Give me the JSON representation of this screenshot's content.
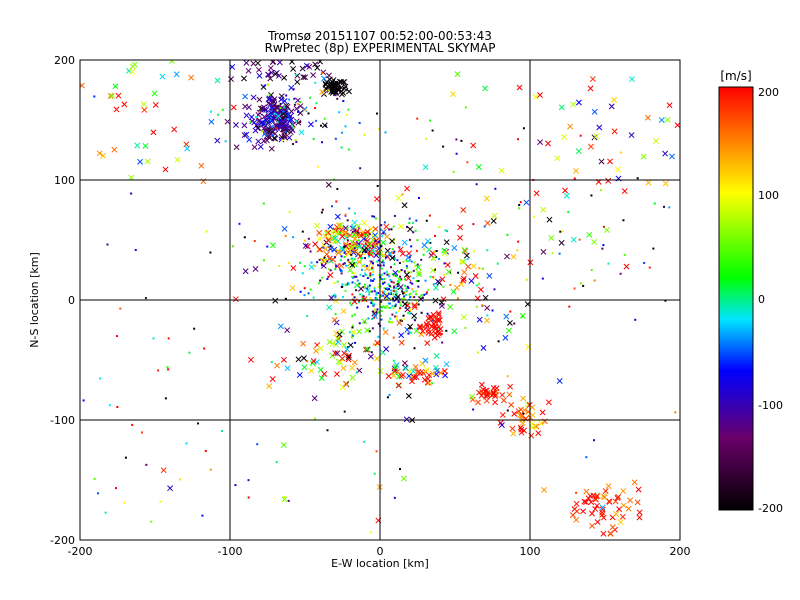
{
  "chart_data": {
    "type": "scatter",
    "title": "Tromsø 20151107 00:52:00-00:53:43",
    "subtitle": "RwPretec (8p) EXPERIMENTAL SKYMAP",
    "xlabel": "E-W location [km]",
    "ylabel": "N-S location [km]",
    "xlim": [
      -200,
      200
    ],
    "ylim": [
      -200,
      200
    ],
    "xticks": [
      "-200",
      "-100",
      "0",
      "100",
      "200"
    ],
    "yticks": [
      "-200",
      "-100",
      "0",
      "100",
      "200"
    ],
    "grid": true,
    "colorbar": {
      "label": "[m/s]",
      "range": [
        -200,
        200
      ],
      "ticks": [
        "200",
        "100",
        "0",
        "-100",
        "-200"
      ],
      "colors": [
        "#000000",
        "#6a006a",
        "#0000ff",
        "#00e5ff",
        "#00ff00",
        "#ffff00",
        "#ff0000"
      ]
    },
    "marker_types": [
      "x",
      "dot"
    ],
    "clusters": [
      {
        "x": -70,
        "y": 150,
        "sx": 9,
        "sy": 10,
        "n": 180,
        "v": -110,
        "vs": 40,
        "m": "x"
      },
      {
        "x": -30,
        "y": 178,
        "sx": 4,
        "sy": 3,
        "n": 50,
        "v": -200,
        "vs": 5,
        "m": "x"
      },
      {
        "x": -65,
        "y": 190,
        "sx": 20,
        "sy": 6,
        "n": 40,
        "v": -140,
        "vs": 60,
        "m": "x"
      },
      {
        "x": -50,
        "y": 150,
        "sx": 25,
        "sy": 15,
        "n": 70,
        "v": -40,
        "vs": 110,
        "m": "dot"
      },
      {
        "x": -20,
        "y": 48,
        "sx": 14,
        "sy": 8,
        "n": 140,
        "v": 90,
        "vs": 120,
        "m": "x"
      },
      {
        "x": -10,
        "y": 35,
        "sx": 18,
        "sy": 20,
        "n": 120,
        "v": -60,
        "vs": 60,
        "m": "dot"
      },
      {
        "x": 5,
        "y": 5,
        "sx": 14,
        "sy": 14,
        "n": 220,
        "v": 0,
        "vs": 70,
        "m": "dot"
      },
      {
        "x": 0,
        "y": 20,
        "sx": 30,
        "sy": 30,
        "n": 160,
        "v": 0,
        "vs": 160,
        "m": "dot"
      },
      {
        "x": 30,
        "y": 10,
        "sx": 40,
        "sy": 40,
        "n": 120,
        "v": 0,
        "vs": 160,
        "m": "x"
      },
      {
        "x": 35,
        "y": -22,
        "sx": 4,
        "sy": 6,
        "n": 35,
        "v": 200,
        "vs": 8,
        "m": "x"
      },
      {
        "x": 25,
        "y": -62,
        "sx": 10,
        "sy": 4,
        "n": 40,
        "v": 130,
        "vs": 120,
        "m": "x"
      },
      {
        "x": -20,
        "y": -45,
        "sx": 20,
        "sy": 15,
        "n": 70,
        "v": 80,
        "vs": 150,
        "m": "x"
      },
      {
        "x": 75,
        "y": -78,
        "sx": 6,
        "sy": 4,
        "n": 30,
        "v": 200,
        "vs": 20,
        "m": "x"
      },
      {
        "x": 100,
        "y": -100,
        "sx": 7,
        "sy": 8,
        "n": 35,
        "v": 180,
        "vs": 40,
        "m": "x"
      },
      {
        "x": 150,
        "y": -175,
        "sx": 14,
        "sy": 12,
        "n": 55,
        "v": 190,
        "vs": 30,
        "m": "x"
      },
      {
        "x": 140,
        "y": 140,
        "sx": 40,
        "sy": 40,
        "n": 60,
        "v": 90,
        "vs": 170,
        "m": "x"
      },
      {
        "x": -160,
        "y": 160,
        "sx": 30,
        "sy": 30,
        "n": 40,
        "v": 100,
        "vs": 120,
        "m": "x"
      },
      {
        "x": 100,
        "y": 40,
        "sx": 60,
        "sy": 40,
        "n": 60,
        "v": 0,
        "vs": 160,
        "m": "dot"
      },
      {
        "x": -150,
        "y": -130,
        "sx": 40,
        "sy": 60,
        "n": 45,
        "v": 60,
        "vs": 160,
        "m": "dot"
      },
      {
        "x": 0,
        "y": 0,
        "sx": 110,
        "sy": 110,
        "n": 110,
        "v": 0,
        "vs": 170,
        "m": "dot"
      },
      {
        "x": 0,
        "y": 0,
        "sx": 110,
        "sy": 110,
        "n": 60,
        "v": 30,
        "vs": 170,
        "m": "x"
      }
    ]
  }
}
